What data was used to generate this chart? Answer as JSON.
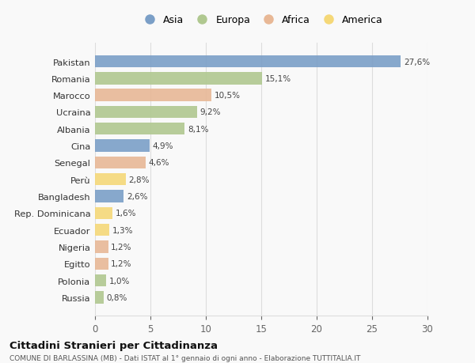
{
  "countries": [
    "Pakistan",
    "Romania",
    "Marocco",
    "Ucraina",
    "Albania",
    "Cina",
    "Senegal",
    "Perù",
    "Bangladesh",
    "Rep. Dominicana",
    "Ecuador",
    "Nigeria",
    "Egitto",
    "Polonia",
    "Russia"
  ],
  "values": [
    27.6,
    15.1,
    10.5,
    9.2,
    8.1,
    4.9,
    4.6,
    2.8,
    2.6,
    1.6,
    1.3,
    1.2,
    1.2,
    1.0,
    0.8
  ],
  "labels": [
    "27,6%",
    "15,1%",
    "10,5%",
    "9,2%",
    "8,1%",
    "4,9%",
    "4,6%",
    "2,8%",
    "2,6%",
    "1,6%",
    "1,3%",
    "1,2%",
    "1,2%",
    "1,0%",
    "0,8%"
  ],
  "continents": [
    "Asia",
    "Europa",
    "Africa",
    "Europa",
    "Europa",
    "Asia",
    "Africa",
    "America",
    "Asia",
    "America",
    "America",
    "Africa",
    "Africa",
    "Europa",
    "Europa"
  ],
  "colors": {
    "Asia": "#7b9fc7",
    "Europa": "#b0c890",
    "Africa": "#e8b896",
    "America": "#f5d878"
  },
  "legend_order": [
    "Asia",
    "Europa",
    "Africa",
    "America"
  ],
  "title": "Cittadini Stranieri per Cittadinanza",
  "subtitle": "COMUNE DI BARLASSINA (MB) - Dati ISTAT al 1° gennaio di ogni anno - Elaborazione TUTTITALIA.IT",
  "xlim": [
    0,
    30
  ],
  "xticks": [
    0,
    5,
    10,
    15,
    20,
    25,
    30
  ],
  "background_color": "#f9f9f9",
  "grid_color": "#dddddd",
  "bar_height": 0.72
}
